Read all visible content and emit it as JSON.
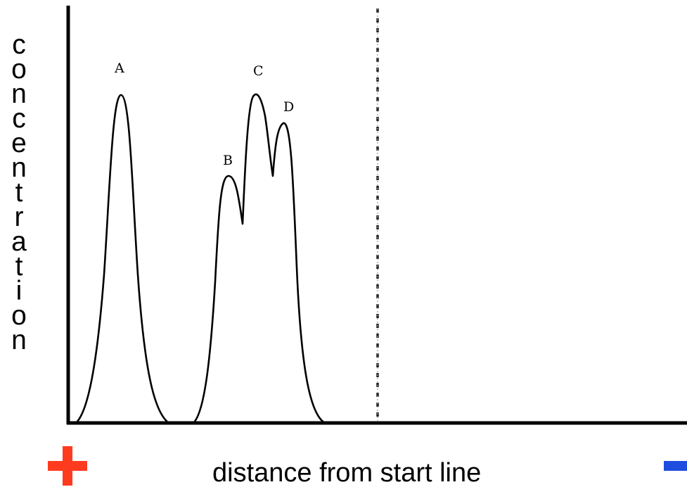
{
  "diagram": {
    "y_axis_label": "concentration",
    "x_axis_label": "distance from start line",
    "peaks": [
      {
        "label": "A"
      },
      {
        "label": "B"
      },
      {
        "label": "C"
      },
      {
        "label": "D"
      }
    ],
    "positive_terminal": {
      "icon": "plus-icon",
      "color": "#ff3b1f"
    },
    "negative_terminal": {
      "icon": "minus-icon",
      "color": "#1f4de0"
    },
    "colors": {
      "line": "#000000",
      "background": "#ffffff"
    }
  }
}
